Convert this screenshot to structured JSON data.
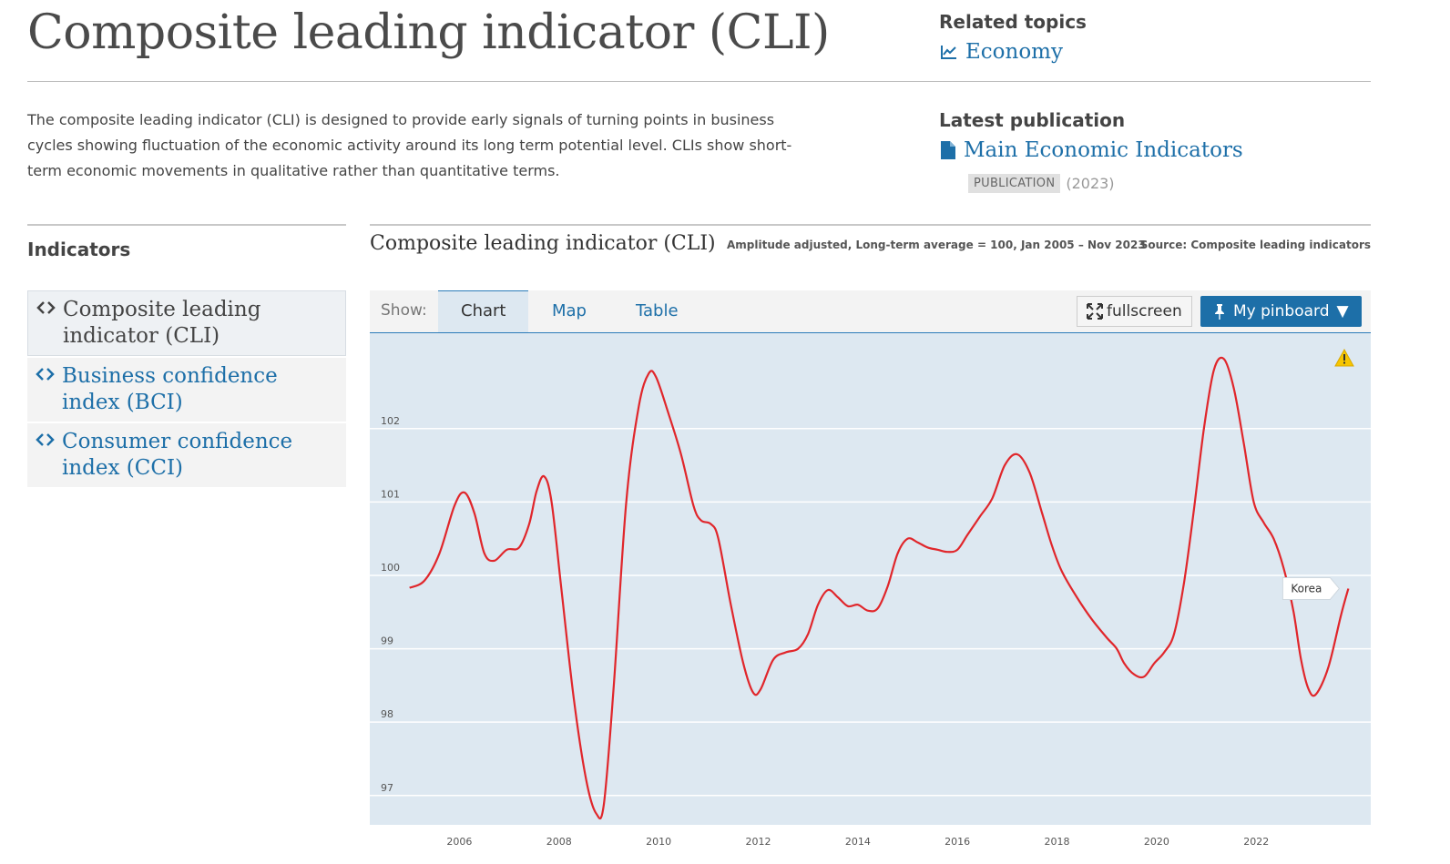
{
  "page": {
    "title": "Composite leading indicator (CLI)",
    "description": "The composite leading indicator (CLI) is designed to provide early signals of turning points in business cycles showing fluctuation of the economic activity around its long term potential level. CLIs show short-term economic movements in qualitative rather than quantitative terms."
  },
  "related": {
    "heading": "Related topics",
    "link": "Economy",
    "icon": "line-chart-icon"
  },
  "latest": {
    "heading": "Latest publication",
    "link": "Main Economic Indicators",
    "icon": "document-icon",
    "badge": "PUBLICATION",
    "year": "(2023)"
  },
  "indicators": {
    "heading": "Indicators",
    "items": [
      {
        "label": "Composite leading indicator (CLI)",
        "active": true
      },
      {
        "label": "Business confidence index (BCI)",
        "active": false
      },
      {
        "label": "Consumer confidence index (CCI)",
        "active": false
      }
    ]
  },
  "chart_header": {
    "title": "Composite leading indicator (CLI)",
    "subtitle": "Amplitude adjusted, Long-term average = 100, Jan 2005 – Nov 2023",
    "source": "Source: Composite leading indicators"
  },
  "toolbar": {
    "show_label": "Show:",
    "tabs": [
      "Chart",
      "Map",
      "Table"
    ],
    "active_tab": "Chart",
    "fullscreen_label": "fullscreen",
    "pinboard_label": "My pinboard",
    "accent": "#1d6fa8"
  },
  "chart_data": {
    "type": "line",
    "title": "",
    "xlabel": "",
    "ylabel": "",
    "xlim": [
      2004.2,
      2024.3
    ],
    "ylim": [
      96.6,
      103.3
    ],
    "yticks": [
      97,
      98,
      99,
      100,
      101,
      102
    ],
    "xticks": [
      2006,
      2008,
      2010,
      2012,
      2014,
      2016,
      2018,
      2020,
      2022
    ],
    "grid": true,
    "background": "#dde8f1",
    "series": [
      {
        "name": "Korea",
        "color": "#e0262b",
        "x": [
          2005.0,
          2005.3,
          2005.6,
          2005.9,
          2006.1,
          2006.3,
          2006.5,
          2006.7,
          2006.95,
          2007.2,
          2007.4,
          2007.55,
          2007.7,
          2007.85,
          2008.05,
          2008.3,
          2008.55,
          2008.75,
          2008.9,
          2009.1,
          2009.35,
          2009.6,
          2009.8,
          2009.95,
          2010.2,
          2010.45,
          2010.7,
          2010.85,
          2011.05,
          2011.2,
          2011.45,
          2011.7,
          2011.9,
          2012.05,
          2012.3,
          2012.55,
          2012.8,
          2013.0,
          2013.2,
          2013.4,
          2013.6,
          2013.8,
          2014.0,
          2014.2,
          2014.4,
          2014.6,
          2014.8,
          2015.0,
          2015.2,
          2015.4,
          2015.6,
          2015.8,
          2016.0,
          2016.2,
          2016.45,
          2016.7,
          2016.95,
          2017.2,
          2017.45,
          2017.7,
          2017.9,
          2018.1,
          2018.4,
          2018.7,
          2019.0,
          2019.2,
          2019.35,
          2019.55,
          2019.75,
          2019.95,
          2020.15,
          2020.35,
          2020.55,
          2020.75,
          2020.95,
          2021.15,
          2021.35,
          2021.55,
          2021.75,
          2021.95,
          2022.15,
          2022.35,
          2022.55,
          2022.75,
          2022.9,
          2023.05,
          2023.2,
          2023.45,
          2023.7,
          2023.85
        ],
        "y": [
          99.83,
          99.93,
          100.3,
          100.95,
          101.13,
          100.85,
          100.3,
          100.2,
          100.35,
          100.38,
          100.7,
          101.15,
          101.35,
          101.0,
          99.8,
          98.3,
          97.2,
          96.75,
          96.88,
          98.5,
          101.0,
          102.3,
          102.75,
          102.7,
          102.2,
          101.65,
          100.95,
          100.75,
          100.7,
          100.5,
          99.6,
          98.8,
          98.4,
          98.45,
          98.85,
          98.95,
          99.0,
          99.2,
          99.6,
          99.8,
          99.7,
          99.58,
          99.6,
          99.52,
          99.55,
          99.85,
          100.3,
          100.5,
          100.45,
          100.38,
          100.35,
          100.32,
          100.35,
          100.55,
          100.8,
          101.05,
          101.5,
          101.65,
          101.4,
          100.85,
          100.4,
          100.05,
          99.7,
          99.4,
          99.15,
          99.0,
          98.8,
          98.65,
          98.62,
          98.8,
          98.95,
          99.2,
          99.9,
          100.9,
          102.0,
          102.8,
          102.95,
          102.55,
          101.8,
          101.0,
          100.72,
          100.5,
          100.1,
          99.5,
          98.85,
          98.45,
          98.38,
          98.75,
          99.45,
          99.82
        ]
      }
    ],
    "legend": "end-of-line label",
    "warning_icon": "warning-icon"
  }
}
